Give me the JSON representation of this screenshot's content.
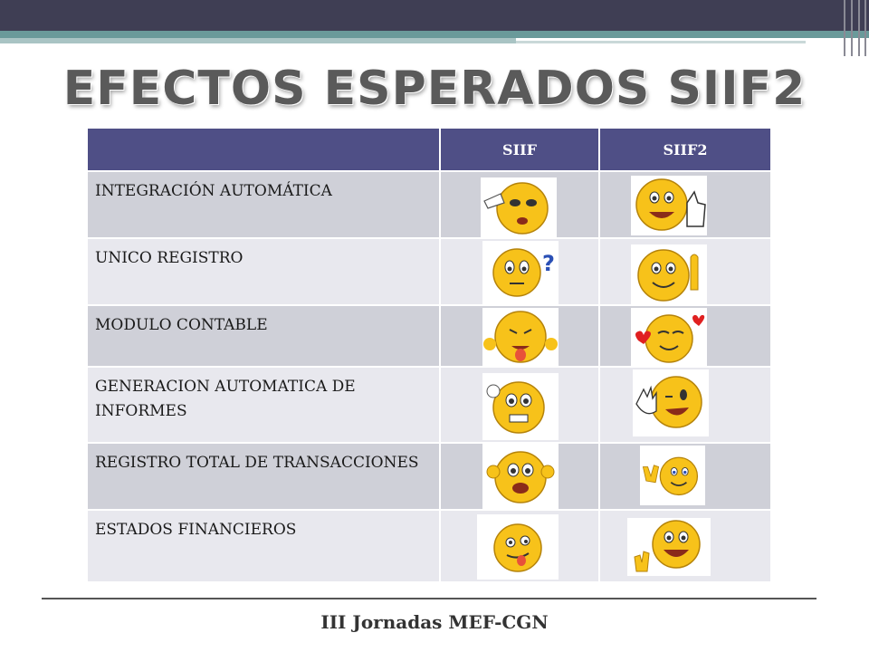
{
  "title": "EFECTOS ESPERADOS SIIF2",
  "table": {
    "headers": [
      "",
      "SIIF",
      "SIIF2"
    ],
    "rows": [
      {
        "label": "INTEGRACIÓN AUTOMÁTICA",
        "siif_icon": "bored-pointing-emoji-icon",
        "siif2_icon": "thumbs-up-smiley-icon"
      },
      {
        "label": "UNICO REGISTRO",
        "siif_icon": "confused-question-emoji-icon",
        "siif2_icon": "finger-up-smiley-icon"
      },
      {
        "label": "MODULO CONTABLE",
        "siif_icon": "tongue-out-emoji-icon",
        "siif2_icon": "in-love-hearts-emoji-icon"
      },
      {
        "label": "GENERACION AUTOMATICA DE INFORMES",
        "siif_icon": "nervous-emoji-icon",
        "siif2_icon": "waving-wink-emoji-icon"
      },
      {
        "label": "REGISTRO TOTAL DE TRANSACCIONES",
        "siif_icon": "shocked-emoji-icon",
        "siif2_icon": "peace-sign-smiley-icon"
      },
      {
        "label": "ESTADOS FINANCIEROS",
        "siif_icon": "dizzy-tongue-emoji-icon",
        "siif2_icon": "happy-waving-smiley-icon"
      }
    ]
  },
  "footer": "III Jornadas MEF-CGN",
  "colors": {
    "header_bg": "#4f4f86",
    "row_odd": "#cfd0d8",
    "row_even": "#e8e8ee",
    "topbar": "#3f3e54",
    "teal": "#6a9a9a"
  }
}
